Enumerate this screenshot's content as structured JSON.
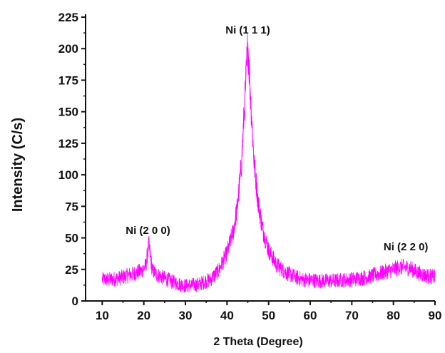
{
  "chart_data": {
    "type": "line",
    "title": "",
    "xlabel": "2 Theta (Degree)",
    "ylabel": "Intensity (C/s)",
    "xlim": [
      6,
      90
    ],
    "ylim": [
      0,
      225
    ],
    "x_ticks": [
      10,
      20,
      30,
      40,
      50,
      60,
      70,
      80,
      90
    ],
    "y_ticks": [
      0,
      25,
      50,
      75,
      100,
      125,
      150,
      175,
      200,
      225
    ],
    "grid": false,
    "legend": "none",
    "series": [
      {
        "color": "#ff00ff",
        "noise": "high-frequency jitter of about ±6 C/s around the profile",
        "points": [
          {
            "x": 10,
            "y": 17
          },
          {
            "x": 12,
            "y": 17
          },
          {
            "x": 14,
            "y": 18
          },
          {
            "x": 16,
            "y": 20
          },
          {
            "x": 18,
            "y": 22
          },
          {
            "x": 19.5,
            "y": 24
          },
          {
            "x": 20.5,
            "y": 28
          },
          {
            "x": 21.2,
            "y": 45
          },
          {
            "x": 22,
            "y": 25
          },
          {
            "x": 23,
            "y": 21
          },
          {
            "x": 25,
            "y": 18
          },
          {
            "x": 27,
            "y": 15
          },
          {
            "x": 30,
            "y": 12
          },
          {
            "x": 33,
            "y": 13
          },
          {
            "x": 36,
            "y": 17
          },
          {
            "x": 38,
            "y": 24
          },
          {
            "x": 40,
            "y": 38
          },
          {
            "x": 41.5,
            "y": 55
          },
          {
            "x": 42.5,
            "y": 75
          },
          {
            "x": 43.5,
            "y": 110
          },
          {
            "x": 44.3,
            "y": 160
          },
          {
            "x": 45,
            "y": 205
          },
          {
            "x": 45.6,
            "y": 165
          },
          {
            "x": 46.5,
            "y": 110
          },
          {
            "x": 47.5,
            "y": 78
          },
          {
            "x": 48.5,
            "y": 58
          },
          {
            "x": 50,
            "y": 40
          },
          {
            "x": 52,
            "y": 28
          },
          {
            "x": 55,
            "y": 21
          },
          {
            "x": 58,
            "y": 17
          },
          {
            "x": 62,
            "y": 16
          },
          {
            "x": 66,
            "y": 16
          },
          {
            "x": 70,
            "y": 17
          },
          {
            "x": 74,
            "y": 19
          },
          {
            "x": 77,
            "y": 22
          },
          {
            "x": 80,
            "y": 25
          },
          {
            "x": 82,
            "y": 27
          },
          {
            "x": 84,
            "y": 26
          },
          {
            "x": 86,
            "y": 22
          },
          {
            "x": 88,
            "y": 20
          },
          {
            "x": 90,
            "y": 19
          }
        ]
      }
    ],
    "annotations": [
      {
        "text": "Ni (2 0 0)",
        "x": 21,
        "y": 53
      },
      {
        "text": "Ni (1 1 1)",
        "x": 45,
        "y": 212
      },
      {
        "text": "Ni (2 2 0)",
        "x": 83,
        "y": 40
      }
    ]
  }
}
